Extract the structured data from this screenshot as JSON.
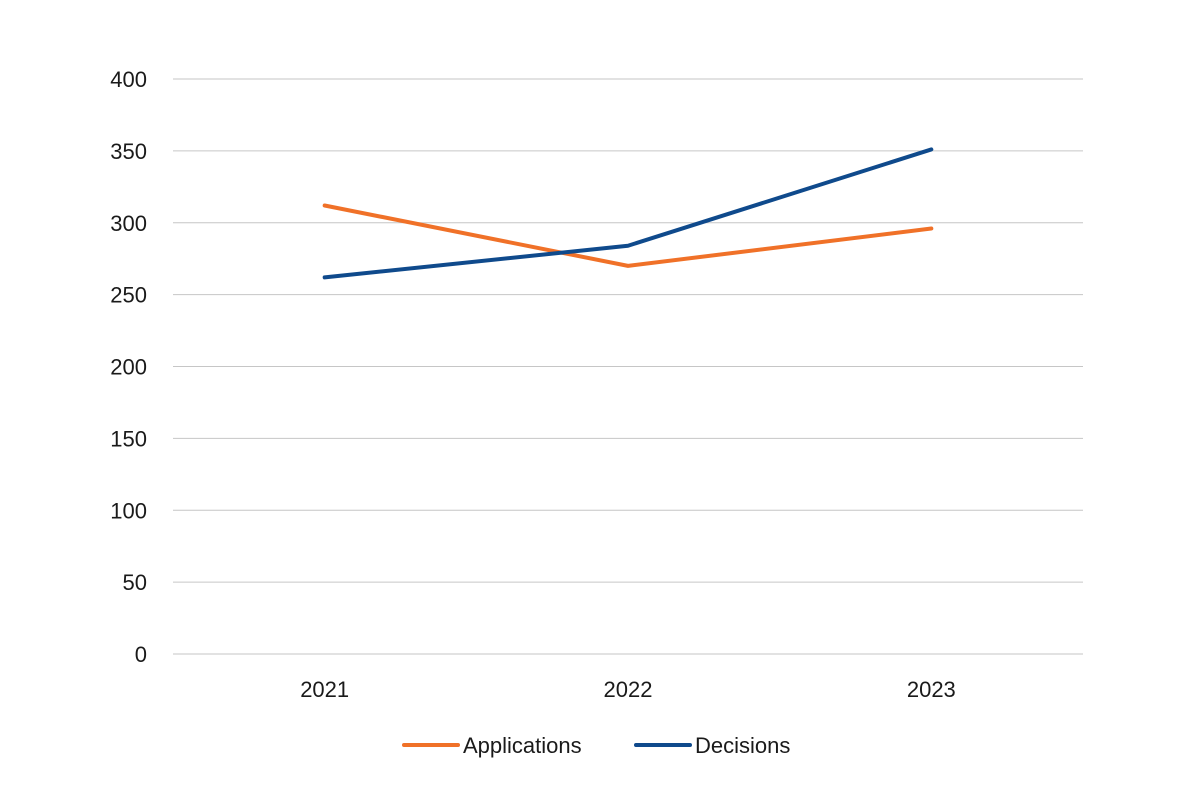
{
  "chart_data": {
    "type": "line",
    "title": "",
    "xlabel": "",
    "ylabel": "",
    "categories": [
      "2021",
      "2022",
      "2023"
    ],
    "ylim": [
      0,
      400
    ],
    "y_ticks": [
      0,
      50,
      100,
      150,
      200,
      250,
      300,
      350,
      400
    ],
    "y_tick_labels": [
      "0",
      "50",
      "100",
      "150",
      "200",
      "250",
      "300",
      "350",
      "400"
    ],
    "grid": true,
    "legend_position": "bottom",
    "series": [
      {
        "name": "Applications",
        "color": "#f07128",
        "values": [
          312,
          270,
          296
        ]
      },
      {
        "name": "Decisions",
        "color": "#0f4a8c",
        "values": [
          262,
          284,
          351
        ]
      }
    ]
  }
}
